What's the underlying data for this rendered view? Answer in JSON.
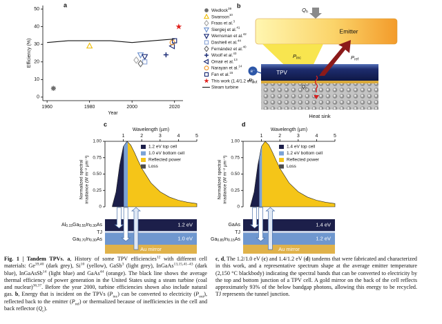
{
  "chart_data": [
    {
      "type": "scatter",
      "panel": "a",
      "xlabel": "Year",
      "ylabel": "Efficiency (%)",
      "xlim": [
        1958,
        2024
      ],
      "xticks": [
        1960,
        1980,
        2000,
        2020
      ],
      "ylim": [
        -2,
        52
      ],
      "yticks": [
        0,
        10,
        20,
        30,
        40,
        50
      ],
      "series": [
        {
          "name": "Wedlock",
          "ref": "39",
          "marker": "asterisk",
          "color": "#6b6b6b",
          "x": [
            1963
          ],
          "values": [
            5
          ]
        },
        {
          "name": "Swanson",
          "ref": "10",
          "marker": "triangle",
          "color": "#f0c010",
          "x": [
            1980
          ],
          "values": [
            29
          ]
        },
        {
          "name": "Fraas et al.",
          "ref": "3",
          "marker": "diamond",
          "color": "#aaaaaa",
          "x": [
            2002
          ],
          "values": [
            21
          ]
        },
        {
          "name": "Siergiej et al.",
          "ref": "41",
          "marker": "triangle-down",
          "color": "#6f93cf",
          "x": [
            2004
          ],
          "values": [
            24
          ]
        },
        {
          "name": "Wernsman et al.",
          "ref": "42",
          "marker": "triangle-down",
          "color": "#1f2f78",
          "x": [
            2006
          ],
          "values": [
            23
          ]
        },
        {
          "name": "Dashiell et al.",
          "ref": "44",
          "marker": "square",
          "color": "#8fa8d8",
          "x": [
            2006
          ],
          "values": [
            20
          ]
        },
        {
          "name": "Fernández et al.",
          "ref": "40",
          "marker": "diamond",
          "color": "#707070",
          "x": [
            2004
          ],
          "values": [
            19
          ]
        },
        {
          "name": "Woolf et al.",
          "ref": "43",
          "marker": "plus",
          "color": "#1f2f78",
          "x": [
            2016
          ],
          "values": [
            24
          ]
        },
        {
          "name": "Omair et al.",
          "ref": "13",
          "marker": "triangle-left",
          "color": "#1f2f78",
          "x": [
            2019
          ],
          "values": [
            29
          ]
        },
        {
          "name": "Narayan et al.",
          "ref": "14",
          "marker": "circle",
          "color": "#f29a2e",
          "x": [
            2019
          ],
          "values": [
            31
          ]
        },
        {
          "name": "Fan et al.",
          "ref": "15",
          "marker": "square",
          "color": "#1f2f78",
          "x": [
            2020
          ],
          "values": [
            32
          ]
        },
        {
          "name": "This work (1.4/1.2 eV)",
          "marker": "star",
          "color": "#e0201c",
          "x": [
            2022
          ],
          "values": [
            40
          ]
        },
        {
          "name": "Steam turbine",
          "type": "line",
          "color": "#111111",
          "x": [
            1960,
            1970,
            1980,
            1990,
            2000,
            2010,
            2020
          ],
          "values": [
            31,
            32,
            32,
            32,
            31,
            32,
            33
          ]
        }
      ]
    },
    {
      "type": "area",
      "panel": "c",
      "xlabel": "Wavelength (µm)",
      "ylabel": [
        "Normalized spectral",
        "irradiance (W m⁻² µm⁻¹)"
      ],
      "xlim": [
        0,
        5
      ],
      "xticks": [
        1,
        2,
        3,
        4,
        5
      ],
      "ylim": [
        0,
        1
      ],
      "yticks": [
        0,
        0.25,
        {
          "value": 0.5,
          "label": "0.50"
        },
        0.75,
        {
          "value": 1,
          "label": "1.00"
        }
      ],
      "x": [
        0.4,
        0.6,
        0.8,
        1.0,
        1.2,
        1.4,
        1.6,
        1.8,
        2.0,
        2.5,
        3.0,
        3.5,
        4.0,
        4.5,
        5.0
      ],
      "values": [
        0.012,
        0.225,
        0.636,
        0.921,
        1.0,
        0.945,
        0.832,
        0.706,
        0.589,
        0.366,
        0.23,
        0.149,
        0.1,
        0.069,
        0.049
      ],
      "band_edges": [
        1.03,
        1.24
      ],
      "legend": [
        {
          "name": "1.2 eV top cell",
          "color": "#1c1f4a"
        },
        {
          "name": "1.0 eV bottom cell",
          "color": "#7aa2d6"
        },
        {
          "name": "Reflected power",
          "color": "#f5c518"
        },
        {
          "name": "Loss",
          "color": "#4d4d4d"
        }
      ],
      "stack": {
        "top": {
          "parts": [
            "Al",
            "0.15",
            "Ga",
            "0.55",
            "In",
            "0.30",
            "As"
          ],
          "energy": "1.2 eV"
        },
        "tj": "TJ",
        "bottom": {
          "parts": [
            "Ga",
            "0.70",
            "In",
            "0.30",
            "As"
          ],
          "energy": "1.0 eV"
        },
        "mirror": "Au mirror"
      }
    },
    {
      "type": "area",
      "panel": "d",
      "xlabel": "Wavelength (µm)",
      "ylabel": [
        "Normalized spectral",
        "irradiance (W m⁻² µm⁻¹)"
      ],
      "xlim": [
        0,
        5
      ],
      "xticks": [
        1,
        2,
        3,
        4,
        5
      ],
      "ylim": [
        0,
        1
      ],
      "yticks": [
        0,
        0.25,
        {
          "value": 0.5,
          "label": "0.50"
        },
        0.75,
        {
          "value": 1,
          "label": "1.00"
        }
      ],
      "x": [
        0.4,
        0.6,
        0.8,
        1.0,
        1.2,
        1.4,
        1.6,
        1.8,
        2.0,
        2.5,
        3.0,
        3.5,
        4.0,
        4.5,
        5.0
      ],
      "values": [
        0.012,
        0.225,
        0.636,
        0.921,
        1.0,
        0.945,
        0.832,
        0.706,
        0.589,
        0.366,
        0.23,
        0.149,
        0.1,
        0.069,
        0.049
      ],
      "band_edges": [
        0.89,
        1.03
      ],
      "legend": [
        {
          "name": "1.4 eV top cell",
          "color": "#1c1f4a"
        },
        {
          "name": "1.2 eV bottom cell",
          "color": "#7aa2d6"
        },
        {
          "name": "Reflected power",
          "color": "#f5c518"
        },
        {
          "name": "Loss",
          "color": "#4d4d4d"
        }
      ],
      "stack": {
        "top": {
          "parts": [
            "GaAs"
          ],
          "energy": "1.4 eV"
        },
        "tj": "TJ",
        "bottom": {
          "parts": [
            "Ga",
            "0.85",
            "In",
            "0.15",
            "As"
          ],
          "energy": "1.2 eV"
        },
        "mirror": "Au mirror"
      }
    }
  ],
  "diagram_b": {
    "panel": "b",
    "Qh": [
      "Q",
      "h"
    ],
    "emitter": "Emitter",
    "Pinc": [
      "P",
      "inc"
    ],
    "Pref": [
      "P",
      "ref"
    ],
    "tpv": "TPV",
    "electron": "e⁻",
    "Pout": [
      "P",
      "out"
    ],
    "Qc": [
      "Q",
      "c"
    ],
    "heat_sink": "Heat sink"
  },
  "caption_left": {
    "runs": [
      [
        "Fig. 1 | Tandem TPVs. ",
        "b"
      ],
      [
        "a",
        "b"
      ],
      [
        ", History of some TPV efficiencies",
        ""
      ],
      [
        "12",
        "sup"
      ],
      [
        " with different cell materials: Ge",
        ""
      ],
      [
        "39,40",
        "sup"
      ],
      [
        " (dark grey), Si",
        ""
      ],
      [
        "10",
        "sup"
      ],
      [
        " (yellow), GaSb",
        ""
      ],
      [
        "3",
        "sup"
      ],
      [
        " (light grey), InGaAs",
        ""
      ],
      [
        "13,15,41–43",
        "sup"
      ],
      [
        " (dark blue), InGaAsSb",
        ""
      ],
      [
        "14",
        "sup"
      ],
      [
        " (light blue) and GaAs",
        ""
      ],
      [
        "44",
        "sup"
      ],
      [
        " (orange). The black line shows the average thermal efficiency of power generation in the United States using a steam turbine (coal and nuclear)",
        ""
      ],
      [
        "36,37",
        "sup"
      ],
      [
        ". Before the year 2000, turbine efficiencies shown also include natural gas. ",
        ""
      ],
      [
        "b",
        "b"
      ],
      [
        ", Energy that is incident on the TPVs (",
        ""
      ],
      [
        "P",
        "i"
      ],
      [
        "inc",
        "sub"
      ],
      [
        ") can be converted to electricity (",
        ""
      ],
      [
        "P",
        "i"
      ],
      [
        "out",
        "sub"
      ],
      [
        "), reflected back to the emitter (",
        ""
      ],
      [
        "P",
        "i"
      ],
      [
        "ref",
        "sub"
      ],
      [
        ") or thermalized because of inefficiencies in the cell and back reflector (",
        ""
      ],
      [
        "Q",
        "i"
      ],
      [
        "c",
        "sub"
      ],
      [
        ").",
        ""
      ]
    ]
  },
  "caption_right": {
    "runs": [
      [
        "c",
        "b"
      ],
      [
        ", ",
        ""
      ],
      [
        "d",
        "b"
      ],
      [
        ", The 1.2/1.0 eV (",
        ""
      ],
      [
        "c",
        "b"
      ],
      [
        ") and 1.4/1.2 eV (",
        ""
      ],
      [
        "d",
        "b"
      ],
      [
        ") tandems that were fabricated and characterized in this work, and a representative spectrum shape at the average emitter temperature (2,150 °C blackbody) indicating the spectral bands that can be converted to electricity by the top and bottom junction of a TPV cell. A gold mirror on the back of the cell reflects approximately 93% of the below bandgap photons, allowing this energy to be recycled. TJ represents the tunnel junction.",
        ""
      ]
    ]
  }
}
